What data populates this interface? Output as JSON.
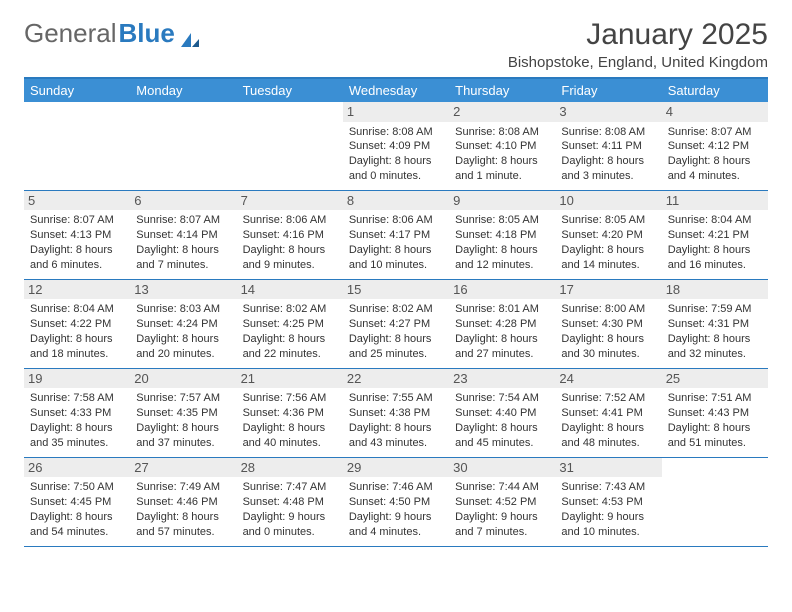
{
  "brand": {
    "part1": "General",
    "part2": "Blue"
  },
  "title": "January 2025",
  "location": "Bishopstoke, England, United Kingdom",
  "colors": {
    "header_bg": "#3b8fd4",
    "border": "#2a7abf",
    "daynum_bg": "#ededed",
    "text": "#333333"
  },
  "day_labels": [
    "Sunday",
    "Monday",
    "Tuesday",
    "Wednesday",
    "Thursday",
    "Friday",
    "Saturday"
  ],
  "weeks": [
    [
      {
        "empty": true
      },
      {
        "empty": true
      },
      {
        "empty": true
      },
      {
        "day": "1",
        "sunrise": "Sunrise: 8:08 AM",
        "sunset": "Sunset: 4:09 PM",
        "daylight1": "Daylight: 8 hours",
        "daylight2": "and 0 minutes."
      },
      {
        "day": "2",
        "sunrise": "Sunrise: 8:08 AM",
        "sunset": "Sunset: 4:10 PM",
        "daylight1": "Daylight: 8 hours",
        "daylight2": "and 1 minute."
      },
      {
        "day": "3",
        "sunrise": "Sunrise: 8:08 AM",
        "sunset": "Sunset: 4:11 PM",
        "daylight1": "Daylight: 8 hours",
        "daylight2": "and 3 minutes."
      },
      {
        "day": "4",
        "sunrise": "Sunrise: 8:07 AM",
        "sunset": "Sunset: 4:12 PM",
        "daylight1": "Daylight: 8 hours",
        "daylight2": "and 4 minutes."
      }
    ],
    [
      {
        "day": "5",
        "sunrise": "Sunrise: 8:07 AM",
        "sunset": "Sunset: 4:13 PM",
        "daylight1": "Daylight: 8 hours",
        "daylight2": "and 6 minutes."
      },
      {
        "day": "6",
        "sunrise": "Sunrise: 8:07 AM",
        "sunset": "Sunset: 4:14 PM",
        "daylight1": "Daylight: 8 hours",
        "daylight2": "and 7 minutes."
      },
      {
        "day": "7",
        "sunrise": "Sunrise: 8:06 AM",
        "sunset": "Sunset: 4:16 PM",
        "daylight1": "Daylight: 8 hours",
        "daylight2": "and 9 minutes."
      },
      {
        "day": "8",
        "sunrise": "Sunrise: 8:06 AM",
        "sunset": "Sunset: 4:17 PM",
        "daylight1": "Daylight: 8 hours",
        "daylight2": "and 10 minutes."
      },
      {
        "day": "9",
        "sunrise": "Sunrise: 8:05 AM",
        "sunset": "Sunset: 4:18 PM",
        "daylight1": "Daylight: 8 hours",
        "daylight2": "and 12 minutes."
      },
      {
        "day": "10",
        "sunrise": "Sunrise: 8:05 AM",
        "sunset": "Sunset: 4:20 PM",
        "daylight1": "Daylight: 8 hours",
        "daylight2": "and 14 minutes."
      },
      {
        "day": "11",
        "sunrise": "Sunrise: 8:04 AM",
        "sunset": "Sunset: 4:21 PM",
        "daylight1": "Daylight: 8 hours",
        "daylight2": "and 16 minutes."
      }
    ],
    [
      {
        "day": "12",
        "sunrise": "Sunrise: 8:04 AM",
        "sunset": "Sunset: 4:22 PM",
        "daylight1": "Daylight: 8 hours",
        "daylight2": "and 18 minutes."
      },
      {
        "day": "13",
        "sunrise": "Sunrise: 8:03 AM",
        "sunset": "Sunset: 4:24 PM",
        "daylight1": "Daylight: 8 hours",
        "daylight2": "and 20 minutes."
      },
      {
        "day": "14",
        "sunrise": "Sunrise: 8:02 AM",
        "sunset": "Sunset: 4:25 PM",
        "daylight1": "Daylight: 8 hours",
        "daylight2": "and 22 minutes."
      },
      {
        "day": "15",
        "sunrise": "Sunrise: 8:02 AM",
        "sunset": "Sunset: 4:27 PM",
        "daylight1": "Daylight: 8 hours",
        "daylight2": "and 25 minutes."
      },
      {
        "day": "16",
        "sunrise": "Sunrise: 8:01 AM",
        "sunset": "Sunset: 4:28 PM",
        "daylight1": "Daylight: 8 hours",
        "daylight2": "and 27 minutes."
      },
      {
        "day": "17",
        "sunrise": "Sunrise: 8:00 AM",
        "sunset": "Sunset: 4:30 PM",
        "daylight1": "Daylight: 8 hours",
        "daylight2": "and 30 minutes."
      },
      {
        "day": "18",
        "sunrise": "Sunrise: 7:59 AM",
        "sunset": "Sunset: 4:31 PM",
        "daylight1": "Daylight: 8 hours",
        "daylight2": "and 32 minutes."
      }
    ],
    [
      {
        "day": "19",
        "sunrise": "Sunrise: 7:58 AM",
        "sunset": "Sunset: 4:33 PM",
        "daylight1": "Daylight: 8 hours",
        "daylight2": "and 35 minutes."
      },
      {
        "day": "20",
        "sunrise": "Sunrise: 7:57 AM",
        "sunset": "Sunset: 4:35 PM",
        "daylight1": "Daylight: 8 hours",
        "daylight2": "and 37 minutes."
      },
      {
        "day": "21",
        "sunrise": "Sunrise: 7:56 AM",
        "sunset": "Sunset: 4:36 PM",
        "daylight1": "Daylight: 8 hours",
        "daylight2": "and 40 minutes."
      },
      {
        "day": "22",
        "sunrise": "Sunrise: 7:55 AM",
        "sunset": "Sunset: 4:38 PM",
        "daylight1": "Daylight: 8 hours",
        "daylight2": "and 43 minutes."
      },
      {
        "day": "23",
        "sunrise": "Sunrise: 7:54 AM",
        "sunset": "Sunset: 4:40 PM",
        "daylight1": "Daylight: 8 hours",
        "daylight2": "and 45 minutes."
      },
      {
        "day": "24",
        "sunrise": "Sunrise: 7:52 AM",
        "sunset": "Sunset: 4:41 PM",
        "daylight1": "Daylight: 8 hours",
        "daylight2": "and 48 minutes."
      },
      {
        "day": "25",
        "sunrise": "Sunrise: 7:51 AM",
        "sunset": "Sunset: 4:43 PM",
        "daylight1": "Daylight: 8 hours",
        "daylight2": "and 51 minutes."
      }
    ],
    [
      {
        "day": "26",
        "sunrise": "Sunrise: 7:50 AM",
        "sunset": "Sunset: 4:45 PM",
        "daylight1": "Daylight: 8 hours",
        "daylight2": "and 54 minutes."
      },
      {
        "day": "27",
        "sunrise": "Sunrise: 7:49 AM",
        "sunset": "Sunset: 4:46 PM",
        "daylight1": "Daylight: 8 hours",
        "daylight2": "and 57 minutes."
      },
      {
        "day": "28",
        "sunrise": "Sunrise: 7:47 AM",
        "sunset": "Sunset: 4:48 PM",
        "daylight1": "Daylight: 9 hours",
        "daylight2": "and 0 minutes."
      },
      {
        "day": "29",
        "sunrise": "Sunrise: 7:46 AM",
        "sunset": "Sunset: 4:50 PM",
        "daylight1": "Daylight: 9 hours",
        "daylight2": "and 4 minutes."
      },
      {
        "day": "30",
        "sunrise": "Sunrise: 7:44 AM",
        "sunset": "Sunset: 4:52 PM",
        "daylight1": "Daylight: 9 hours",
        "daylight2": "and 7 minutes."
      },
      {
        "day": "31",
        "sunrise": "Sunrise: 7:43 AM",
        "sunset": "Sunset: 4:53 PM",
        "daylight1": "Daylight: 9 hours",
        "daylight2": "and 10 minutes."
      },
      {
        "empty": true
      }
    ]
  ]
}
